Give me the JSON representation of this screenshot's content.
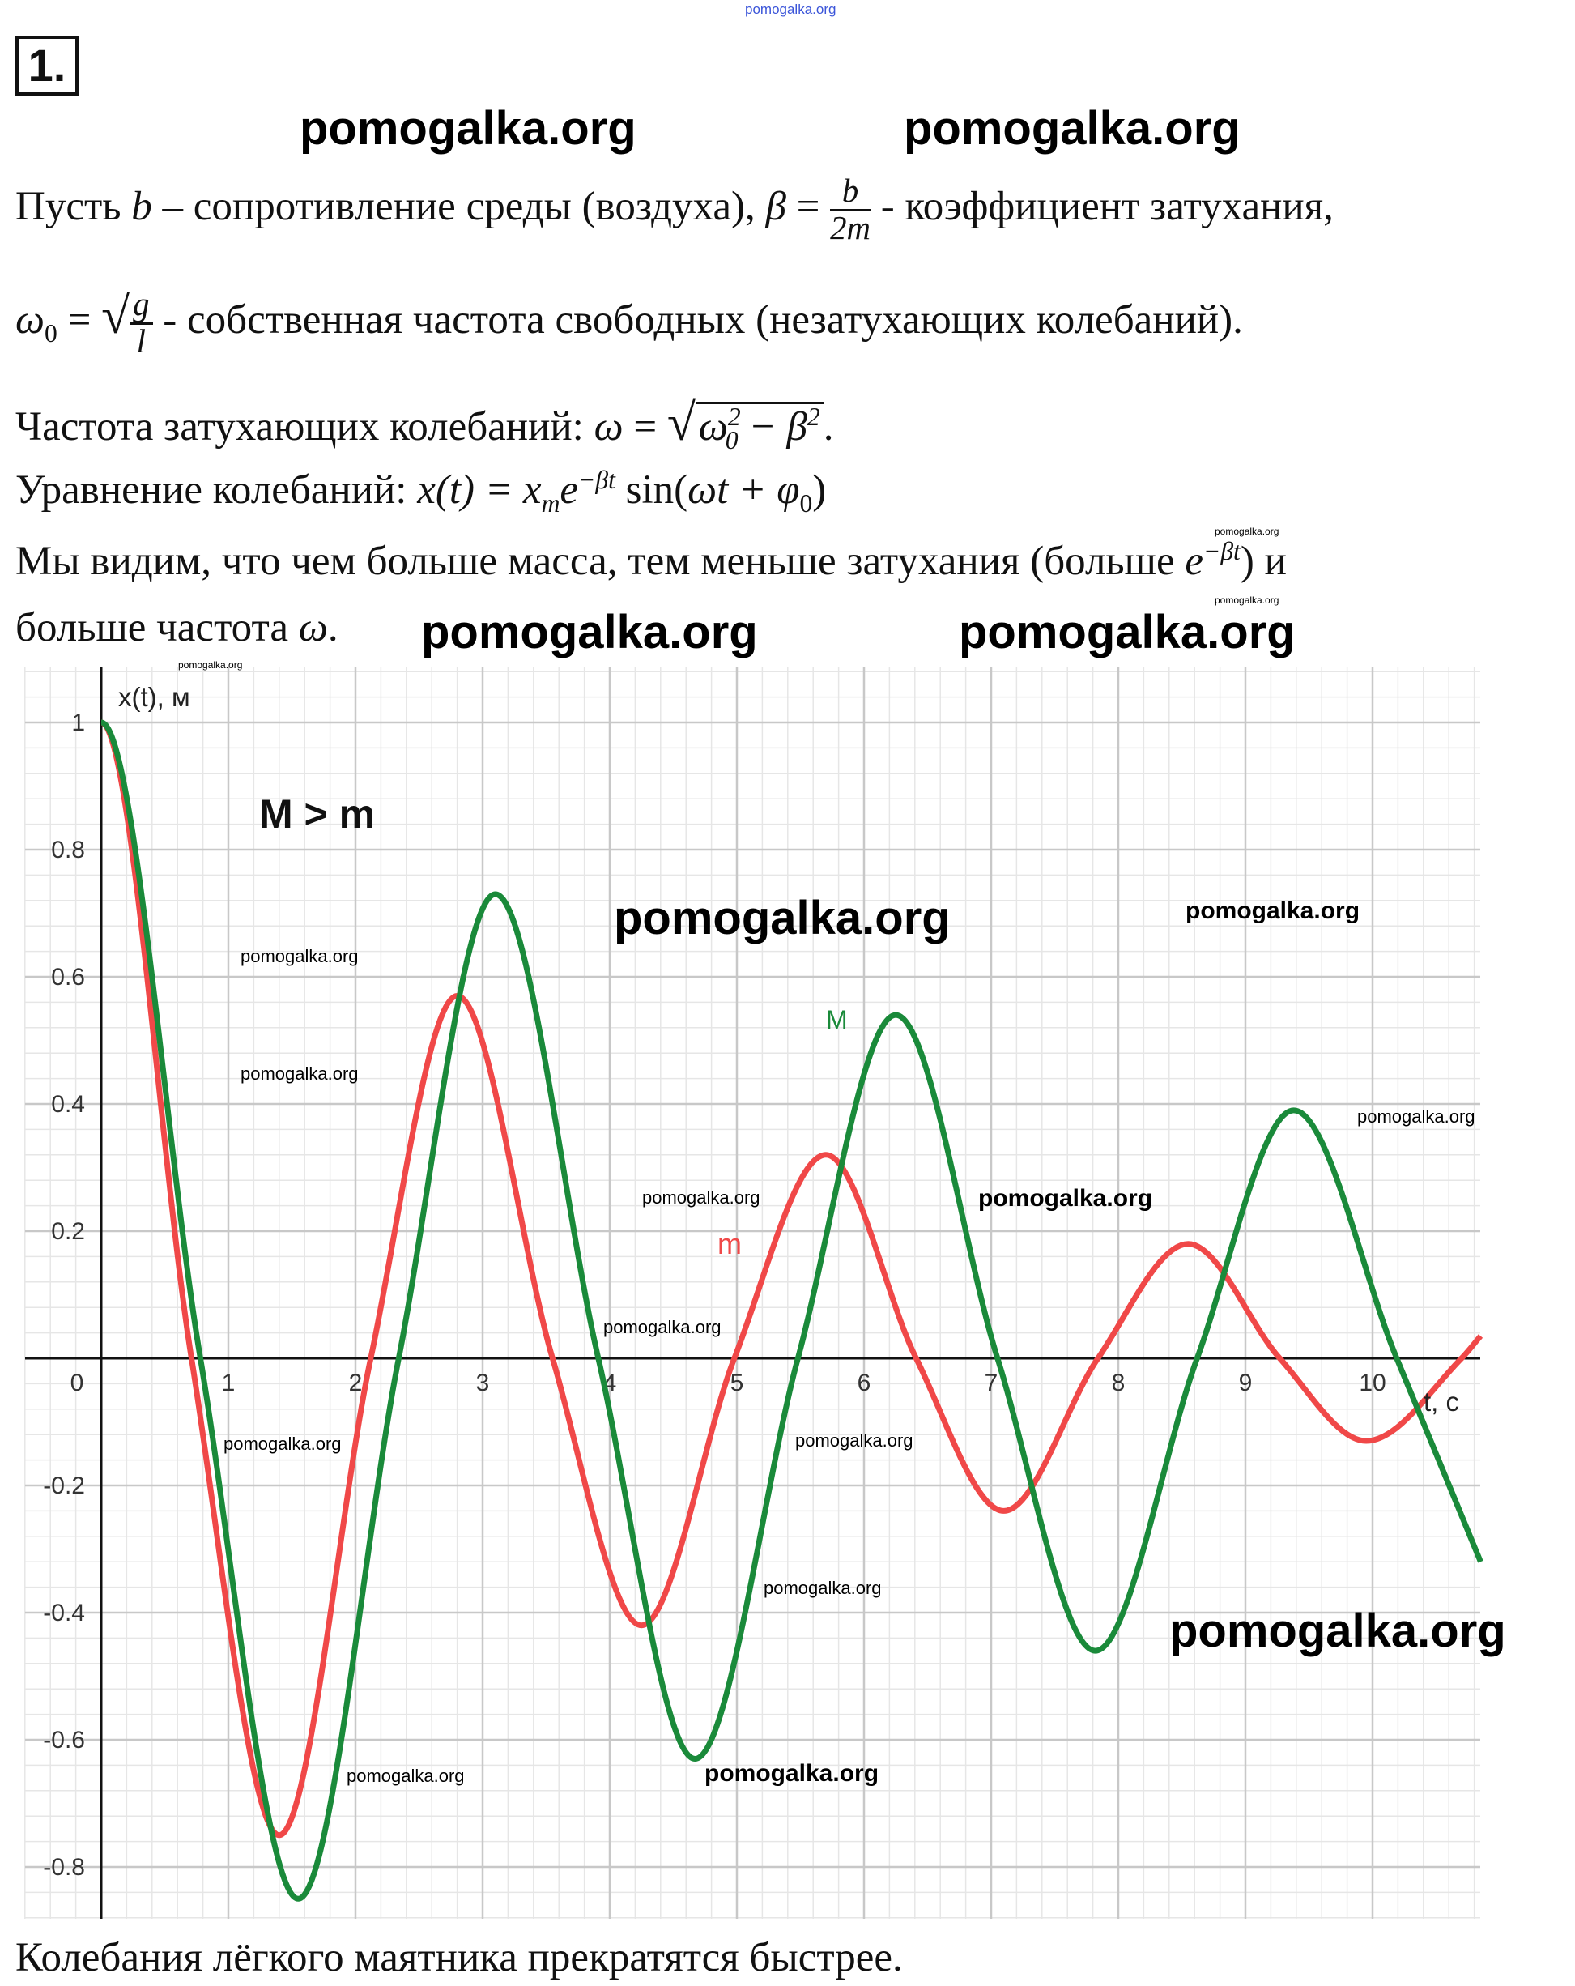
{
  "watermark_text": "pomogalka.org",
  "problem_number": "1.",
  "text": {
    "l1_a": "Пусть ",
    "l1_b": "b",
    "l1_c": " – сопротивление среды (воздуха), ",
    "l1_beta": "β",
    "l1_eq": " = ",
    "l1_num": "b",
    "l1_den": "2m",
    "l1_d": " - коэффициент затухания,",
    "l2_omega0": "ω",
    "l2_sub0": "0",
    "l2_eq": " = ",
    "l2_num": "g",
    "l2_den": "l",
    "l2_d": " - собственная частота свободных (незатухающих колебаний).",
    "l3_a": "Частота затухающих колебаний: ",
    "l3_omega": "ω",
    "l3_eq": " = ",
    "l3_rad": "ω",
    "l3_sup": "2",
    "l3_sub": "0",
    "l3_minus": " − β",
    "l3_sup2": "2",
    "l3_end": ".",
    "l4_a": "Уравнение колебаний: ",
    "l4_x": "x",
    "l4_t": "(t) = x",
    "l4_m": "m",
    "l4_e": "e",
    "l4_exp": "−βt",
    "l4_sin": " sin(",
    "l4_arg": "ωt + φ",
    "l4_sub": "0",
    "l4_close": ")",
    "l5_a": "Мы видим, что чем больше масса, тем меньше затухания (больше ",
    "l5_e": "e",
    "l5_exp": "−βt",
    "l5_b": ") и",
    "l6_a": "больше частота ",
    "l6_omega": "ω",
    "l6_end": ".",
    "conclusion": "Колебания лёгкого маятника прекратятся быстрее."
  },
  "chart_data": {
    "type": "line",
    "ylabel": "x(t), м",
    "xlabel": "t, c",
    "annotation": "M > m",
    "xlim": [
      -0.6,
      10.85
    ],
    "ylim": [
      -0.88,
      1.09
    ],
    "grid": true,
    "x_ticks": [
      0,
      1,
      2,
      3,
      4,
      5,
      6,
      7,
      8,
      9,
      10
    ],
    "x_tick_labels": [
      "0",
      "1",
      "2",
      "3",
      "4",
      "5",
      "6",
      "7",
      "8",
      "9",
      "10"
    ],
    "y_ticks": [
      1,
      0.8,
      0.6,
      0.4,
      0.2,
      -0.2,
      -0.4,
      -0.6,
      -0.8
    ],
    "y_tick_labels": [
      "1",
      "0.8",
      "0.6",
      "0.4",
      "0.2",
      "-0.2",
      "-0.4",
      "-0.6",
      "-0.8"
    ],
    "series": [
      {
        "name": "M",
        "color": "#1a8a3a",
        "points": [
          [
            0,
            1
          ],
          [
            0.78,
            0
          ],
          [
            1.55,
            -0.85
          ],
          [
            2.34,
            0
          ],
          [
            3.1,
            0.73
          ],
          [
            3.91,
            0
          ],
          [
            4.67,
            -0.63
          ],
          [
            5.48,
            0
          ],
          [
            6.25,
            0.54
          ],
          [
            7.05,
            0
          ],
          [
            7.82,
            -0.46
          ],
          [
            8.62,
            0
          ],
          [
            9.38,
            0.39
          ],
          [
            10.19,
            0
          ],
          [
            10.85,
            -0.32
          ]
        ]
      },
      {
        "name": "m",
        "color": "#f04848",
        "points": [
          [
            0,
            1
          ],
          [
            0.71,
            0
          ],
          [
            1.4,
            -0.75
          ],
          [
            2.12,
            0
          ],
          [
            2.8,
            0.57
          ],
          [
            3.55,
            0
          ],
          [
            4.25,
            -0.42
          ],
          [
            4.98,
            0
          ],
          [
            5.7,
            0.32
          ],
          [
            6.41,
            0
          ],
          [
            7.1,
            -0.24
          ],
          [
            7.84,
            0
          ],
          [
            8.55,
            0.18
          ],
          [
            9.27,
            0
          ],
          [
            9.95,
            -0.13
          ],
          [
            10.7,
            0
          ],
          [
            10.85,
            0.035
          ]
        ]
      }
    ]
  }
}
